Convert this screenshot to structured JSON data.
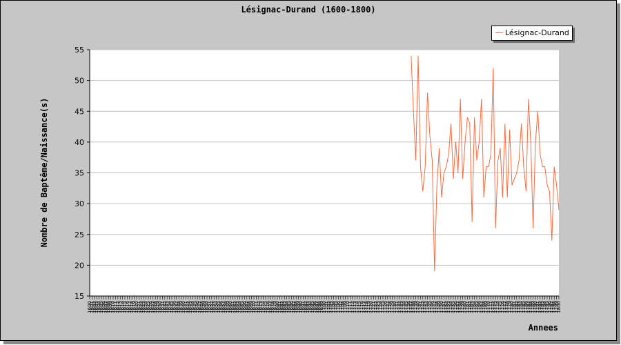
{
  "chart_data": {
    "type": "line",
    "title": "Lésignac-Durand (1600-1800)",
    "xlabel": "Annees",
    "ylabel": "Nombre de Baptême/Naissance(s)",
    "x": [
      1600,
      1800
    ],
    "xlim": [
      1600,
      1800
    ],
    "ylim": [
      15,
      55
    ],
    "yticks": [
      15,
      20,
      25,
      30,
      35,
      40,
      45,
      50,
      55
    ],
    "grid": true,
    "legend": "top-right",
    "series": [
      {
        "name": "Lésignac-Durand",
        "color": "#ff6a3d",
        "points": [
          [
            1737,
            54
          ],
          [
            1738,
            45
          ],
          [
            1739,
            37
          ],
          [
            1740,
            54
          ],
          [
            1741,
            36
          ],
          [
            1742,
            32
          ],
          [
            1743,
            36
          ],
          [
            1744,
            48
          ],
          [
            1745,
            41
          ],
          [
            1746,
            37
          ],
          [
            1747,
            19
          ],
          [
            1748,
            33
          ],
          [
            1749,
            39
          ],
          [
            1750,
            31
          ],
          [
            1751,
            35
          ],
          [
            1752,
            36
          ],
          [
            1753,
            38
          ],
          [
            1754,
            43
          ],
          [
            1755,
            34
          ],
          [
            1756,
            40
          ],
          [
            1757,
            35
          ],
          [
            1758,
            47
          ],
          [
            1759,
            34
          ],
          [
            1760,
            40
          ],
          [
            1761,
            44
          ],
          [
            1762,
            43
          ],
          [
            1763,
            27
          ],
          [
            1764,
            44
          ],
          [
            1765,
            37
          ],
          [
            1766,
            40
          ],
          [
            1767,
            47
          ],
          [
            1768,
            31
          ],
          [
            1769,
            36
          ],
          [
            1770,
            36
          ],
          [
            1771,
            38
          ],
          [
            1772,
            52
          ],
          [
            1773,
            26
          ],
          [
            1774,
            37
          ],
          [
            1775,
            39
          ],
          [
            1776,
            31
          ],
          [
            1777,
            43
          ],
          [
            1778,
            31
          ],
          [
            1779,
            42
          ],
          [
            1780,
            33
          ],
          [
            1781,
            34
          ],
          [
            1782,
            35
          ],
          [
            1783,
            37
          ],
          [
            1784,
            43
          ],
          [
            1785,
            36
          ],
          [
            1786,
            32
          ],
          [
            1787,
            47
          ],
          [
            1788,
            40
          ],
          [
            1789,
            26
          ],
          [
            1790,
            40
          ],
          [
            1791,
            45
          ],
          [
            1792,
            38
          ],
          [
            1793,
            36
          ],
          [
            1794,
            36
          ],
          [
            1795,
            33
          ],
          [
            1796,
            32
          ],
          [
            1797,
            24
          ],
          [
            1798,
            36
          ],
          [
            1799,
            33
          ],
          [
            1800,
            29
          ]
        ]
      }
    ]
  }
}
